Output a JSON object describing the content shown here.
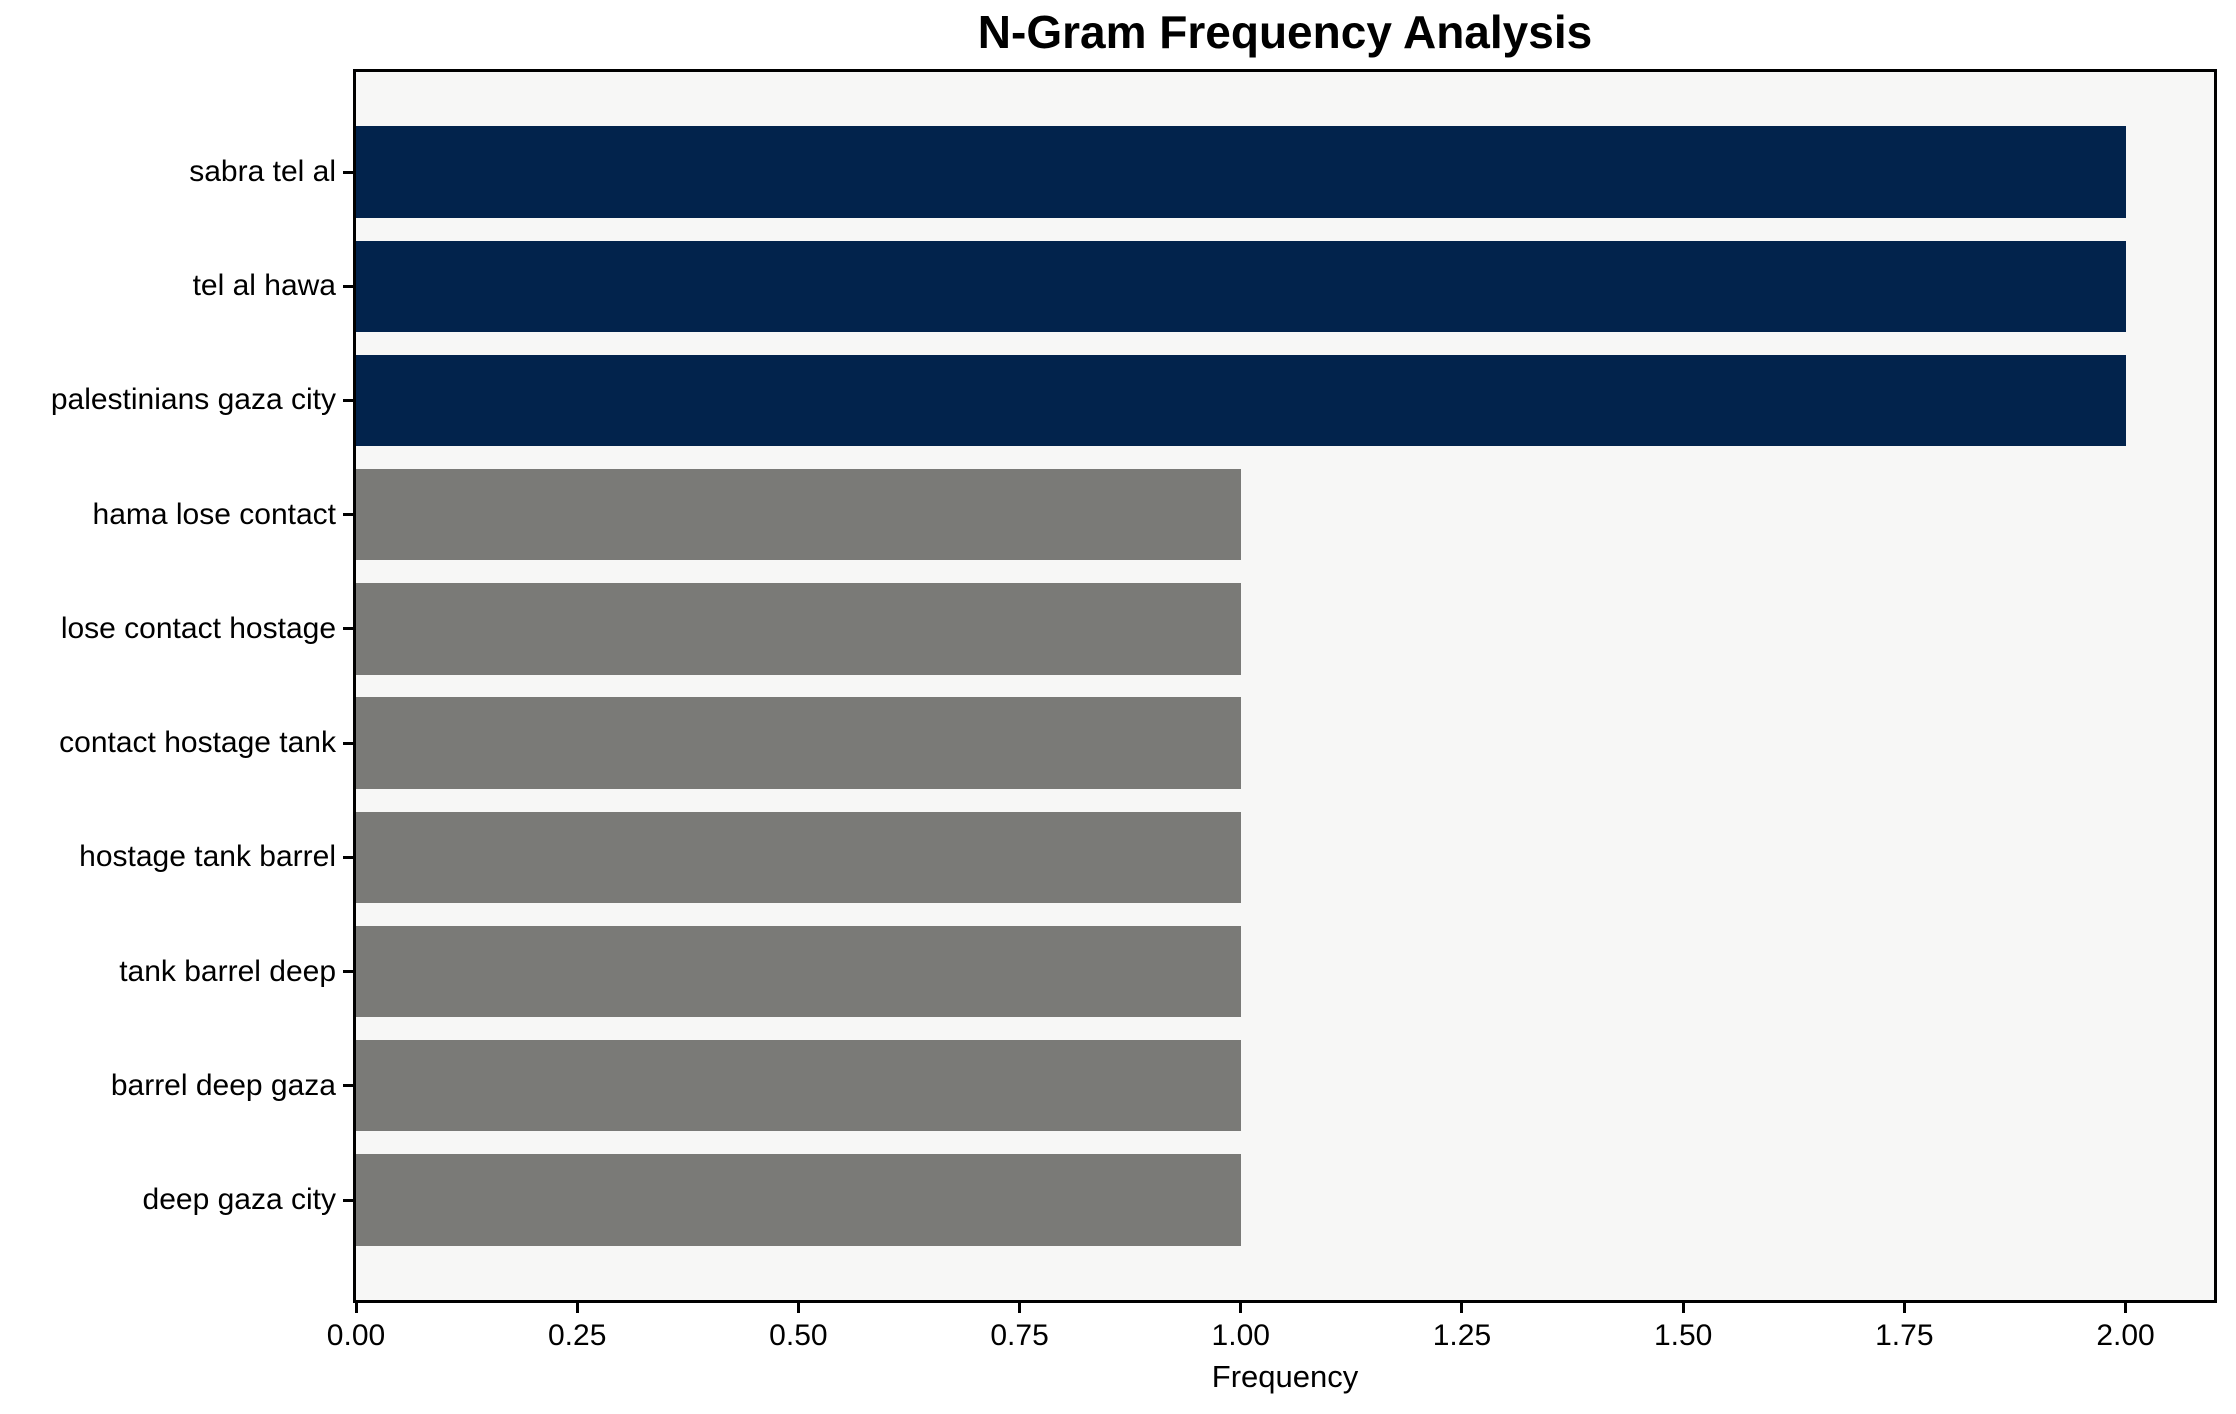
{
  "chart_data": {
    "type": "bar",
    "orientation": "horizontal",
    "title": "N-Gram Frequency Analysis",
    "xlabel": "Frequency",
    "ylabel": "",
    "categories": [
      "sabra tel al",
      "tel al hawa",
      "palestinians gaza city",
      "hama lose contact",
      "lose contact hostage",
      "contact hostage tank",
      "hostage tank barrel",
      "tank barrel deep",
      "barrel deep gaza",
      "deep gaza city"
    ],
    "values": [
      2,
      2,
      2,
      1,
      1,
      1,
      1,
      1,
      1,
      1
    ],
    "bar_colors": [
      "#02234c",
      "#02234c",
      "#02234c",
      "#7a7a77",
      "#7a7a77",
      "#7a7a77",
      "#7a7a77",
      "#7a7a77",
      "#7a7a77",
      "#7a7a77"
    ],
    "x_ticks": [
      {
        "label": "0.00",
        "value": 0.0
      },
      {
        "label": "0.25",
        "value": 0.25
      },
      {
        "label": "0.50",
        "value": 0.5
      },
      {
        "label": "0.75",
        "value": 0.75
      },
      {
        "label": "1.00",
        "value": 1.0
      },
      {
        "label": "1.25",
        "value": 1.25
      },
      {
        "label": "1.50",
        "value": 1.5
      },
      {
        "label": "1.75",
        "value": 1.75
      },
      {
        "label": "2.00",
        "value": 2.0
      }
    ],
    "xlim": [
      0,
      2.1
    ],
    "grid": false,
    "legend_position": "none",
    "colors": {
      "highlight_bar": "#02234c",
      "default_bar": "#7a7a77",
      "plot_background": "#f7f7f6",
      "figure_background": "#ffffff",
      "spine": "#000000",
      "text": "#000000"
    }
  }
}
